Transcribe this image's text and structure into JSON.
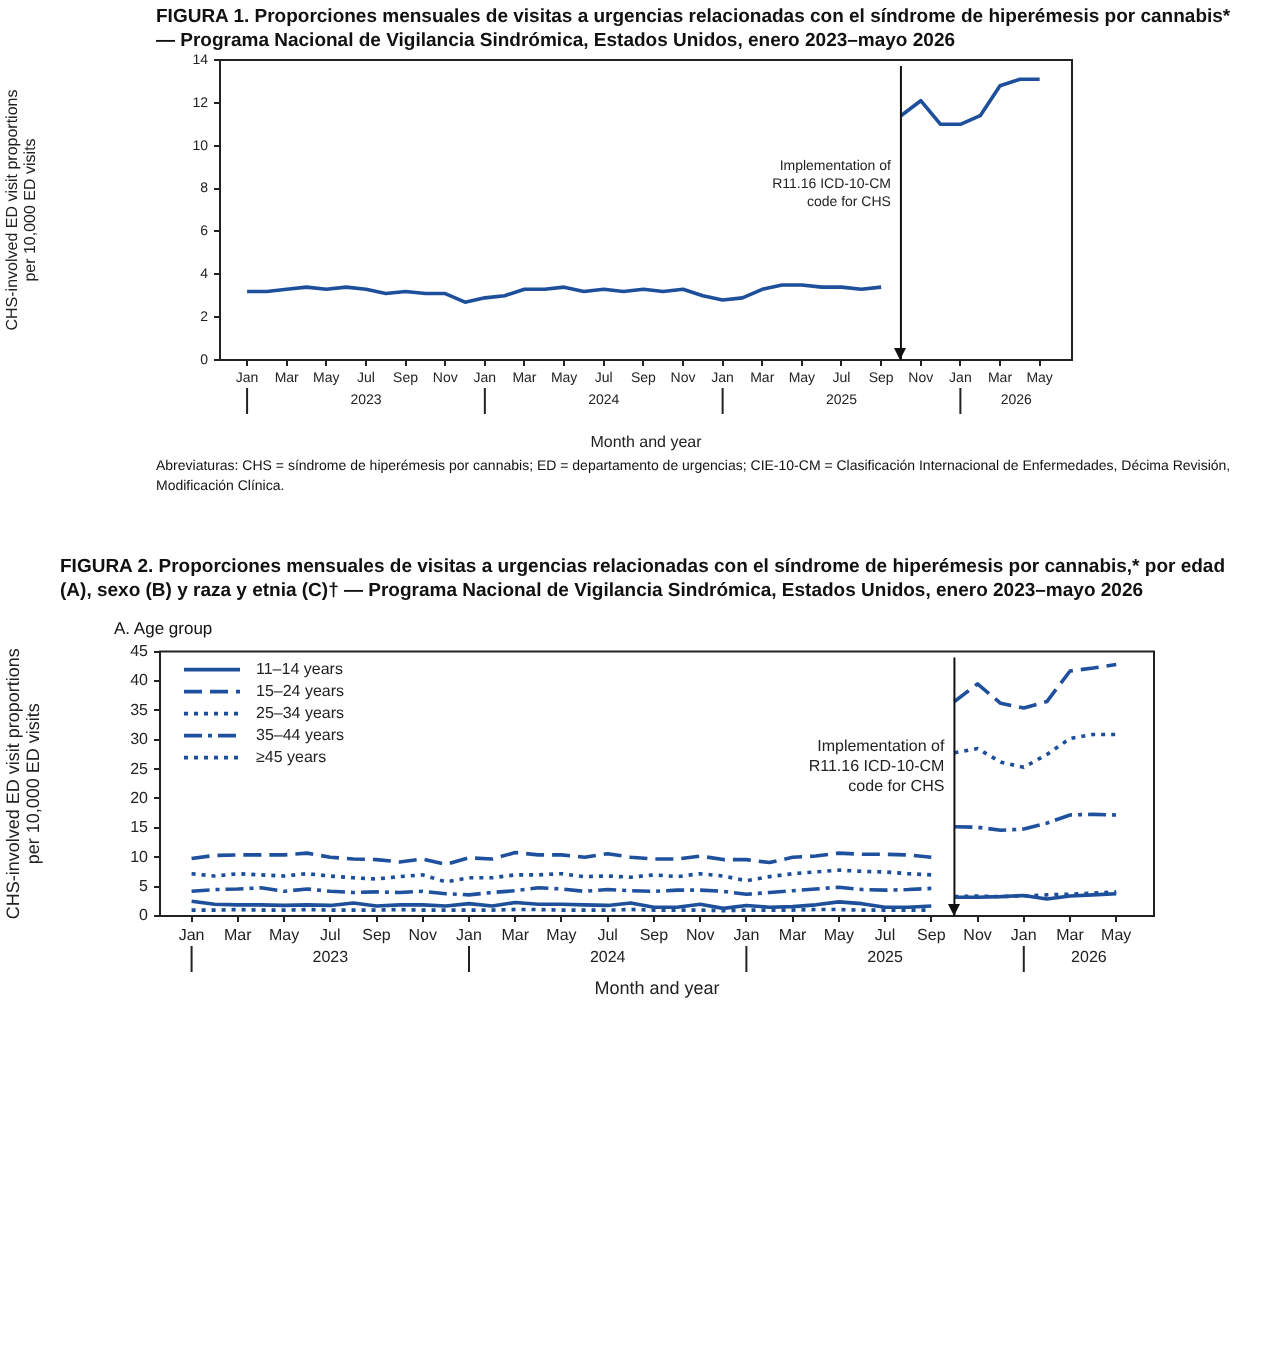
{
  "chart_data": [
    {
      "type": "line",
      "title": "FIGURA 1. Proporciones mensuales de visitas a urgencias relacionadas con el síndrome de hiperémesis por cannabis* — Programa Nacional de Vigilancia Sindrómica, Estados Unidos, enero 2023–mayo 2026",
      "xlabel": "Month and year",
      "ylabel": "CHS-involved ED visit proportions\nper 10,000 ED visits",
      "x": [
        "2023-01",
        "2023-02",
        "2023-03",
        "2023-04",
        "2023-05",
        "2023-06",
        "2023-07",
        "2023-08",
        "2023-09",
        "2023-10",
        "2023-11",
        "2023-12",
        "2024-01",
        "2024-02",
        "2024-03",
        "2024-04",
        "2024-05",
        "2024-06",
        "2024-07",
        "2024-08",
        "2024-09",
        "2024-10",
        "2024-11",
        "2024-12",
        "2025-01",
        "2025-02",
        "2025-03",
        "2025-04",
        "2025-05",
        "2025-06",
        "2025-07",
        "2025-08",
        "2025-09",
        "2025-10",
        "2025-11",
        "2025-12",
        "2026-01",
        "2026-02",
        "2026-03",
        "2026-04",
        "2026-05"
      ],
      "series": [
        {
          "color": "#1d4f9b",
          "values": [
            3.2,
            3.2,
            3.3,
            3.4,
            3.3,
            3.4,
            3.3,
            3.1,
            3.2,
            3.1,
            3.1,
            2.7,
            2.9,
            3.0,
            3.3,
            3.3,
            3.4,
            3.2,
            3.3,
            3.2,
            3.3,
            3.2,
            3.3,
            3.0,
            2.8,
            2.9,
            3.3,
            3.5,
            3.5,
            3.4,
            3.4,
            3.3,
            3.4,
            11.4,
            12.1,
            11.0,
            11.0,
            11.4,
            12.8,
            13.1,
            13.1
          ]
        }
      ],
      "xlim": [
        "2022-11-20",
        "2026-06-20"
      ],
      "xticks": [
        {
          "value": "2023-01",
          "label": "Jan"
        },
        {
          "value": "2023-03",
          "label": "Mar"
        },
        {
          "value": "2023-05",
          "label": "May"
        },
        {
          "value": "2023-07",
          "label": "Jul"
        },
        {
          "value": "2023-09",
          "label": "Sep"
        },
        {
          "value": "2023-11",
          "label": "Nov"
        },
        {
          "value": "2024-01",
          "label": "Jan"
        },
        {
          "value": "2024-03",
          "label": "Mar"
        },
        {
          "value": "2024-05",
          "label": "May"
        },
        {
          "value": "2024-07",
          "label": "Jul"
        },
        {
          "value": "2024-09",
          "label": "Sep"
        },
        {
          "value": "2024-11",
          "label": "Nov"
        },
        {
          "value": "2025-01",
          "label": "Jan"
        },
        {
          "value": "2025-03",
          "label": "Mar"
        },
        {
          "value": "2025-05",
          "label": "May"
        },
        {
          "value": "2025-07",
          "label": "Jul"
        },
        {
          "value": "2025-09",
          "label": "Sep"
        },
        {
          "value": "2025-11",
          "label": "Nov"
        },
        {
          "value": "2026-01",
          "label": "Jan"
        },
        {
          "value": "2026-03",
          "label": "Mar"
        },
        {
          "value": "2026-05",
          "label": "May"
        }
      ],
      "ylim": [
        0,
        14
      ],
      "yticks": [
        0,
        2,
        4,
        6,
        8,
        10,
        12,
        14
      ],
      "grid": false,
      "legend": false,
      "marker": "none",
      "line_style": "solid",
      "ref_lines": [
        {
          "axis": "x",
          "value": "2025-10",
          "label": "Implementation of\nR11.16 ICD-10-CM\ncode for CHS"
        }
      ],
      "annotations": [
        "2023",
        "2024",
        "2025",
        "2026",
        "Abreviaturas: CHS = síndrome de hiperémesis por cannabis; ED = departamento de urgencias; CIE-10-CM = Clasificación Internacional de Enfermedades, Décima Revisión, Modificación Clínica."
      ]
    },
    {
      "type": "line",
      "title": "FIGURA 2. Proporciones mensuales de visitas a urgencias relacionadas con el síndrome de hiperémesis por cannabis,* por edad (A), sexo (B) y raza y etnia (C)† — Programa Nacional de Vigilancia Sindrómica, Estados Unidos, enero 2023–mayo 2026",
      "subtitle": "A. Age group",
      "xlabel": "Month and year",
      "ylabel": "CHS-involved ED visit proportions\nper 10,000 ED visits",
      "x": [
        "2023-01",
        "2023-02",
        "2023-03",
        "2023-04",
        "2023-05",
        "2023-06",
        "2023-07",
        "2023-08",
        "2023-09",
        "2023-10",
        "2023-11",
        "2023-12",
        "2024-01",
        "2024-02",
        "2024-03",
        "2024-04",
        "2024-05",
        "2024-06",
        "2024-07",
        "2024-08",
        "2024-09",
        "2024-10",
        "2024-11",
        "2024-12",
        "2025-01",
        "2025-02",
        "2025-03",
        "2025-04",
        "2025-05",
        "2025-06",
        "2025-07",
        "2025-08",
        "2025-09",
        "2025-10",
        "2025-11",
        "2025-12",
        "2026-01",
        "2026-02",
        "2026-03",
        "2026-04",
        "2026-05"
      ],
      "series": [
        {
          "name": "11–14 years",
          "color": "#1d4f9b",
          "line_style": "solid",
          "values": [
            2.5,
            2.0,
            1.9,
            1.9,
            1.8,
            1.9,
            1.8,
            2.2,
            1.7,
            1.9,
            1.9,
            1.7,
            2.1,
            1.7,
            2.3,
            2.0,
            2.0,
            1.9,
            1.8,
            2.2,
            1.5,
            1.5,
            2.0,
            1.3,
            1.8,
            1.5,
            1.6,
            1.9,
            2.4,
            2.1,
            1.5,
            1.5,
            1.7,
            3.2,
            3.2,
            3.3,
            3.5,
            2.9,
            3.4,
            3.6,
            3.8
          ]
        },
        {
          "name": "15–24 years",
          "color": "#1e509d",
          "line_style": "dashed",
          "values": [
            9.8,
            10.3,
            10.4,
            10.4,
            10.4,
            10.7,
            10.0,
            9.7,
            9.6,
            9.2,
            9.7,
            8.8,
            9.9,
            9.7,
            10.8,
            10.4,
            10.4,
            10.0,
            10.6,
            10.0,
            9.7,
            9.7,
            10.2,
            9.6,
            9.6,
            9.1,
            10.0,
            10.2,
            10.7,
            10.5,
            10.5,
            10.4,
            10.0,
            36.5,
            39.5,
            36.2,
            35.4,
            36.5,
            41.7,
            42.2,
            42.8
          ]
        },
        {
          "name": "25–34 years",
          "color": "#1c4e99",
          "line_style": "dotted",
          "values": [
            7.2,
            6.8,
            7.2,
            7.0,
            6.8,
            7.2,
            6.8,
            6.5,
            6.3,
            6.7,
            7.0,
            5.8,
            6.5,
            6.5,
            7.0,
            7.0,
            7.2,
            6.7,
            6.8,
            6.6,
            7.0,
            6.7,
            7.2,
            6.8,
            6.0,
            6.7,
            7.2,
            7.5,
            7.8,
            7.6,
            7.5,
            7.2,
            7.0,
            27.8,
            28.5,
            26.2,
            25.3,
            27.5,
            30.2,
            30.9,
            30.9
          ]
        },
        {
          "name": "35–44 years",
          "color": "#1f519e",
          "line_style": "dashdot",
          "values": [
            4.2,
            4.5,
            4.6,
            4.8,
            4.2,
            4.6,
            4.2,
            4.0,
            4.1,
            4.0,
            4.2,
            3.8,
            3.6,
            4.0,
            4.3,
            4.8,
            4.6,
            4.2,
            4.5,
            4.3,
            4.2,
            4.4,
            4.4,
            4.2,
            3.7,
            4.0,
            4.3,
            4.6,
            4.9,
            4.5,
            4.4,
            4.5,
            4.7,
            15.2,
            15.1,
            14.6,
            14.8,
            15.8,
            17.2,
            17.3,
            17.2
          ]
        },
        {
          "name": "≥45 years",
          "color": "#1b4d98",
          "line_style": "dotted",
          "values": [
            1.0,
            1.0,
            1.1,
            1.0,
            1.0,
            1.1,
            1.0,
            1.0,
            1.0,
            1.1,
            1.0,
            1.0,
            1.0,
            1.0,
            1.1,
            1.1,
            1.0,
            1.0,
            1.0,
            1.1,
            1.0,
            1.0,
            1.0,
            0.9,
            1.0,
            1.0,
            1.0,
            1.1,
            1.1,
            1.0,
            1.0,
            1.0,
            1.0,
            3.3,
            3.4,
            3.3,
            3.4,
            3.6,
            3.7,
            3.9,
            4.1
          ]
        }
      ],
      "xlim": [
        "2022-11-20",
        "2026-06-20"
      ],
      "xticks": [
        {
          "value": "2023-01",
          "label": "Jan"
        },
        {
          "value": "2023-03",
          "label": "Mar"
        },
        {
          "value": "2023-05",
          "label": "May"
        },
        {
          "value": "2023-07",
          "label": "Jul"
        },
        {
          "value": "2023-09",
          "label": "Sep"
        },
        {
          "value": "2023-11",
          "label": "Nov"
        },
        {
          "value": "2024-01",
          "label": "Jan"
        },
        {
          "value": "2024-03",
          "label": "Mar"
        },
        {
          "value": "2024-05",
          "label": "May"
        },
        {
          "value": "2024-07",
          "label": "Jul"
        },
        {
          "value": "2024-09",
          "label": "Sep"
        },
        {
          "value": "2024-11",
          "label": "Nov"
        },
        {
          "value": "2025-01",
          "label": "Jan"
        },
        {
          "value": "2025-03",
          "label": "Mar"
        },
        {
          "value": "2025-05",
          "label": "May"
        },
        {
          "value": "2025-07",
          "label": "Jul"
        },
        {
          "value": "2025-09",
          "label": "Sep"
        },
        {
          "value": "2025-11",
          "label": "Nov"
        },
        {
          "value": "2026-01",
          "label": "Jan"
        },
        {
          "value": "2026-03",
          "label": "Mar"
        },
        {
          "value": "2026-05",
          "label": "May"
        }
      ],
      "ylim": [
        0,
        45
      ],
      "yticks": [
        0,
        5,
        10,
        15,
        20,
        25,
        30,
        35,
        40,
        45
      ],
      "grid": false,
      "legend": "top left",
      "marker": "none",
      "ref_lines": [
        {
          "axis": "x",
          "value": "2025-10",
          "label": "Implementation of\nR11.16 ICD-10-CM\ncode for CHS"
        }
      ],
      "annotations": [
        "2023",
        "2024",
        "2025",
        "2026"
      ]
    }
  ]
}
